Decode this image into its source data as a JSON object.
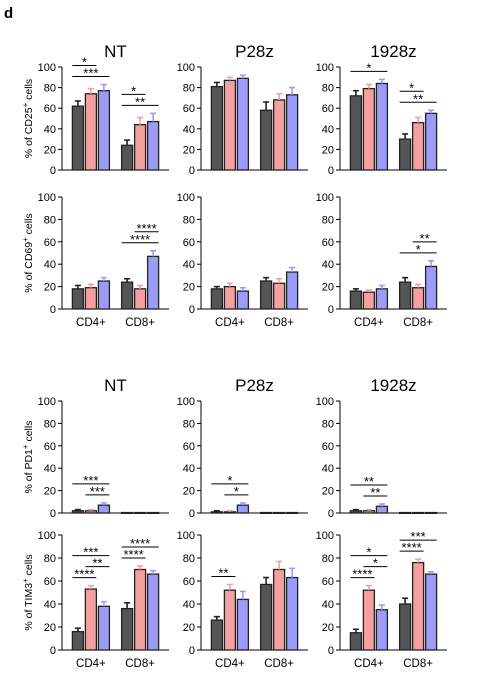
{
  "figure": {
    "panel_letter": "d",
    "colors": {
      "NT": "#555555",
      "P28z": "#f4a0a0",
      "1928z": "#9c9cf8",
      "bar_stroke": "#222222",
      "sig": "#000000"
    }
  },
  "chart_data": [
    {
      "type": "bar",
      "column_title": "NT",
      "ylabel": "% of CD25+ cells",
      "ylim": [
        0,
        100
      ],
      "yticks": [
        "0",
        "20",
        "40",
        "60",
        "80",
        "100"
      ],
      "categories": [
        "",
        ""
      ],
      "series": [
        {
          "values": [
            62,
            24
          ],
          "errors": [
            5,
            5
          ]
        },
        {
          "values": [
            74,
            44
          ],
          "errors": [
            5,
            7
          ]
        },
        {
          "values": [
            77,
            47
          ],
          "errors": [
            6,
            8
          ]
        }
      ],
      "significance": [
        {
          "group": 0,
          "from": 0,
          "to": 2,
          "label": "***",
          "level": 0
        },
        {
          "group": 0,
          "from": 0,
          "to": 1,
          "label": "*",
          "level": 1
        },
        {
          "group": 1,
          "from": 0,
          "to": 2,
          "label": "**",
          "level": 0
        },
        {
          "group": 1,
          "from": 0,
          "to": 1,
          "label": "*",
          "level": 1
        }
      ]
    },
    {
      "type": "bar",
      "column_title": "P28z",
      "ylabel": "",
      "ylim": [
        0,
        100
      ],
      "yticks": [
        "0",
        "20",
        "40",
        "60",
        "80",
        "100"
      ],
      "categories": [
        "",
        ""
      ],
      "series": [
        {
          "values": [
            81,
            58
          ],
          "errors": [
            4,
            8
          ]
        },
        {
          "values": [
            87,
            68
          ],
          "errors": [
            3,
            6
          ]
        },
        {
          "values": [
            89,
            73
          ],
          "errors": [
            3,
            7
          ]
        }
      ],
      "significance": []
    },
    {
      "type": "bar",
      "column_title": "1928z",
      "ylabel": "",
      "ylim": [
        0,
        100
      ],
      "yticks": [
        "0",
        "20",
        "40",
        "60",
        "80",
        "100"
      ],
      "categories": [
        "",
        ""
      ],
      "series": [
        {
          "values": [
            72,
            30
          ],
          "errors": [
            5,
            5
          ]
        },
        {
          "values": [
            79,
            46
          ],
          "errors": [
            4,
            5
          ]
        },
        {
          "values": [
            84,
            55
          ],
          "errors": [
            4,
            3
          ]
        }
      ],
      "significance": [
        {
          "group": 0,
          "from": 0,
          "to": 2,
          "label": "*",
          "level": 0
        },
        {
          "group": 1,
          "from": 0,
          "to": 2,
          "label": "**",
          "level": 0
        },
        {
          "group": 1,
          "from": 0,
          "to": 1,
          "label": "*",
          "level": 1
        }
      ]
    },
    {
      "type": "bar",
      "column_title": "",
      "ylabel": "% of CD69+ cells",
      "ylim": [
        0,
        100
      ],
      "yticks": [
        "0",
        "20",
        "40",
        "60",
        "80",
        "100"
      ],
      "categories": [
        "CD4+",
        "CD8+"
      ],
      "series": [
        {
          "values": [
            18,
            24
          ],
          "errors": [
            3,
            3
          ]
        },
        {
          "values": [
            19,
            18
          ],
          "errors": [
            3,
            3
          ]
        },
        {
          "values": [
            25,
            47
          ],
          "errors": [
            3,
            5
          ]
        }
      ],
      "significance": [
        {
          "group": 1,
          "from": 0,
          "to": 2,
          "label": "****",
          "level": 0
        },
        {
          "group": 1,
          "from": 1,
          "to": 2,
          "label": "****",
          "level": 1
        }
      ]
    },
    {
      "type": "bar",
      "column_title": "",
      "ylabel": "",
      "ylim": [
        0,
        100
      ],
      "yticks": [
        "0",
        "20",
        "40",
        "60",
        "80",
        "100"
      ],
      "categories": [
        "CD4+",
        "CD8+"
      ],
      "series": [
        {
          "values": [
            18,
            25
          ],
          "errors": [
            2,
            3
          ]
        },
        {
          "values": [
            20,
            23
          ],
          "errors": [
            3,
            4
          ]
        },
        {
          "values": [
            16,
            33
          ],
          "errors": [
            3,
            4
          ]
        }
      ],
      "significance": []
    },
    {
      "type": "bar",
      "column_title": "",
      "ylabel": "",
      "ylim": [
        0,
        100
      ],
      "yticks": [
        "0",
        "20",
        "40",
        "60",
        "80",
        "100"
      ],
      "categories": [
        "CD4+",
        "CD8+"
      ],
      "series": [
        {
          "values": [
            16,
            24
          ],
          "errors": [
            2,
            4
          ]
        },
        {
          "values": [
            15,
            19
          ],
          "errors": [
            2,
            3
          ]
        },
        {
          "values": [
            18,
            38
          ],
          "errors": [
            3,
            5
          ]
        }
      ],
      "significance": [
        {
          "group": 1,
          "from": 0,
          "to": 2,
          "label": "*",
          "level": 0
        },
        {
          "group": 1,
          "from": 1,
          "to": 2,
          "label": "**",
          "level": 1
        }
      ]
    },
    {
      "type": "bar",
      "column_title": "NT",
      "ylabel": "% of PD1+ cells",
      "ylim": [
        0,
        100
      ],
      "yticks": [
        "0",
        "20",
        "40",
        "60",
        "80",
        "100"
      ],
      "categories": [
        "",
        ""
      ],
      "series": [
        {
          "values": [
            2,
            0.4
          ],
          "errors": [
            1,
            0
          ]
        },
        {
          "values": [
            2,
            0.4
          ],
          "errors": [
            1,
            0
          ]
        },
        {
          "values": [
            7,
            0.4
          ],
          "errors": [
            2,
            0
          ]
        }
      ],
      "significance": [
        {
          "group": 0,
          "from": 0,
          "to": 2,
          "label": "***",
          "level": 1
        },
        {
          "group": 0,
          "from": 1,
          "to": 2,
          "label": "***",
          "level": 0
        }
      ]
    },
    {
      "type": "bar",
      "column_title": "P28z",
      "ylabel": "",
      "ylim": [
        0,
        100
      ],
      "yticks": [
        "0",
        "20",
        "40",
        "60",
        "80",
        "100"
      ],
      "categories": [
        "",
        ""
      ],
      "series": [
        {
          "values": [
            1,
            0.4
          ],
          "errors": [
            1,
            0
          ]
        },
        {
          "values": [
            1,
            0.4
          ],
          "errors": [
            1,
            0
          ]
        },
        {
          "values": [
            7,
            0.4
          ],
          "errors": [
            2,
            0
          ]
        }
      ],
      "significance": [
        {
          "group": 0,
          "from": 0,
          "to": 2,
          "label": "*",
          "level": 1
        },
        {
          "group": 0,
          "from": 1,
          "to": 2,
          "label": "*",
          "level": 0
        }
      ]
    },
    {
      "type": "bar",
      "column_title": "1928z",
      "ylabel": "",
      "ylim": [
        0,
        100
      ],
      "yticks": [
        "0",
        "20",
        "40",
        "60",
        "80",
        "100"
      ],
      "categories": [
        "",
        ""
      ],
      "series": [
        {
          "values": [
            2,
            0.4
          ],
          "errors": [
            1,
            0
          ]
        },
        {
          "values": [
            2,
            0.4
          ],
          "errors": [
            1,
            0
          ]
        },
        {
          "values": [
            6,
            0.4
          ],
          "errors": [
            2,
            0
          ]
        }
      ],
      "significance": [
        {
          "group": 0,
          "from": 0,
          "to": 2,
          "label": "**",
          "level": 1
        },
        {
          "group": 0,
          "from": 1,
          "to": 2,
          "label": "**",
          "level": 0
        }
      ]
    },
    {
      "type": "bar",
      "column_title": "",
      "ylabel": "% of TIM3+ cells",
      "ylim": [
        0,
        100
      ],
      "yticks": [
        "0",
        "20",
        "40",
        "60",
        "80",
        "100"
      ],
      "categories": [
        "CD4+",
        "CD8+"
      ],
      "series": [
        {
          "values": [
            16,
            36
          ],
          "errors": [
            3,
            5
          ]
        },
        {
          "values": [
            53,
            70
          ],
          "errors": [
            3,
            3
          ]
        },
        {
          "values": [
            38,
            66
          ],
          "errors": [
            4,
            3
          ]
        }
      ],
      "significance": [
        {
          "group": 0,
          "from": 0,
          "to": 2,
          "label": "***",
          "level": 2
        },
        {
          "group": 0,
          "from": 1,
          "to": 2,
          "label": "**",
          "level": 1
        },
        {
          "group": 0,
          "from": 0,
          "to": 1,
          "label": "****",
          "level": 0
        },
        {
          "group": 1,
          "from": 0,
          "to": 2,
          "label": "****",
          "level": 1
        },
        {
          "group": 1,
          "from": 0,
          "to": 1,
          "label": "****",
          "level": 0
        }
      ]
    },
    {
      "type": "bar",
      "column_title": "",
      "ylabel": "",
      "ylim": [
        0,
        100
      ],
      "yticks": [
        "0",
        "20",
        "40",
        "60",
        "80",
        "100"
      ],
      "categories": [
        "CD4+",
        "CD8+"
      ],
      "series": [
        {
          "values": [
            26,
            57
          ],
          "errors": [
            3,
            6
          ]
        },
        {
          "values": [
            52,
            70
          ],
          "errors": [
            5,
            7
          ]
        },
        {
          "values": [
            44,
            63
          ],
          "errors": [
            7,
            8
          ]
        }
      ],
      "significance": [
        {
          "group": 0,
          "from": 0,
          "to": 1,
          "label": "**",
          "level": 0
        }
      ]
    },
    {
      "type": "bar",
      "column_title": "",
      "ylabel": "",
      "ylim": [
        0,
        100
      ],
      "yticks": [
        "0",
        "20",
        "40",
        "60",
        "80",
        "100"
      ],
      "categories": [
        "CD4+",
        "CD8+"
      ],
      "series": [
        {
          "values": [
            15,
            40
          ],
          "errors": [
            3,
            5
          ]
        },
        {
          "values": [
            52,
            76
          ],
          "errors": [
            4,
            3
          ]
        },
        {
          "values": [
            35,
            66
          ],
          "errors": [
            4,
            2
          ]
        }
      ],
      "significance": [
        {
          "group": 0,
          "from": 0,
          "to": 2,
          "label": "*",
          "level": 2
        },
        {
          "group": 0,
          "from": 1,
          "to": 2,
          "label": "*",
          "level": 1
        },
        {
          "group": 0,
          "from": 0,
          "to": 1,
          "label": "****",
          "level": 0
        },
        {
          "group": 1,
          "from": 0,
          "to": 2,
          "label": "***",
          "level": 1
        },
        {
          "group": 1,
          "from": 0,
          "to": 1,
          "label": "****",
          "level": 0
        }
      ]
    }
  ]
}
